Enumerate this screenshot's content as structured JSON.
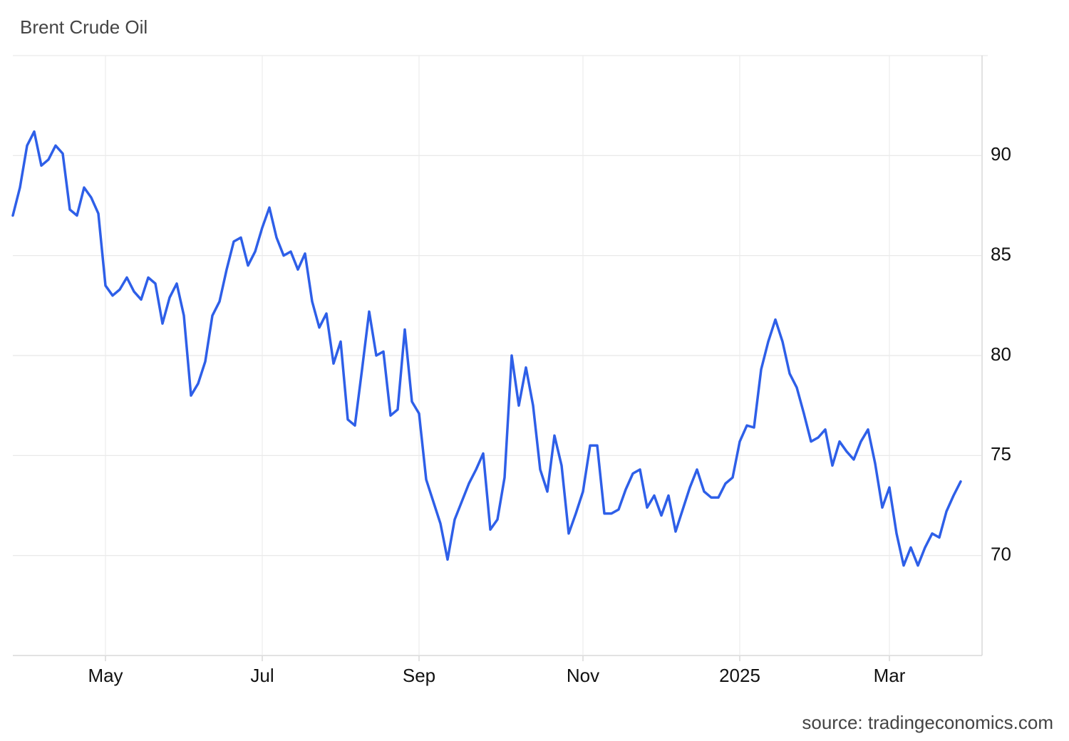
{
  "chart_data": {
    "type": "line",
    "title": "Brent Crude Oil",
    "source": "source: tradingeconomics.com",
    "color": "#2e5fe8",
    "grid": true,
    "categories": [
      null,
      null,
      null,
      null,
      null,
      null,
      null,
      null,
      null,
      null,
      null,
      null,
      null,
      "May",
      null,
      null,
      null,
      null,
      null,
      null,
      null,
      null,
      null,
      null,
      null,
      null,
      null,
      null,
      null,
      null,
      null,
      null,
      null,
      null,
      null,
      "Jul",
      null,
      null,
      null,
      null,
      null,
      null,
      null,
      null,
      null,
      null,
      null,
      null,
      null,
      null,
      null,
      null,
      null,
      null,
      null,
      null,
      null,
      "Sep",
      null,
      null,
      null,
      null,
      null,
      null,
      null,
      null,
      null,
      null,
      null,
      null,
      null,
      null,
      null,
      null,
      null,
      null,
      null,
      null,
      null,
      null,
      "Nov",
      null,
      null,
      null,
      null,
      null,
      null,
      null,
      null,
      null,
      null,
      null,
      null,
      null,
      null,
      null,
      null,
      null,
      null,
      null,
      null,
      null,
      "2025",
      null,
      null,
      null,
      null,
      null,
      null,
      null,
      null,
      null,
      null,
      null,
      null,
      null,
      null,
      null,
      null,
      null,
      null,
      null,
      null,
      "Mar",
      null,
      null,
      null,
      null,
      null,
      null,
      null,
      null,
      null,
      null
    ],
    "values": [
      87.0,
      88.4,
      90.5,
      91.2,
      89.5,
      89.8,
      90.5,
      90.1,
      87.3,
      87.0,
      88.4,
      87.9,
      87.1,
      83.5,
      83.0,
      83.3,
      83.9,
      83.2,
      82.8,
      83.9,
      83.6,
      81.6,
      82.9,
      83.6,
      82.0,
      78.0,
      78.6,
      79.7,
      82.0,
      82.7,
      84.3,
      85.7,
      85.9,
      84.5,
      85.2,
      86.4,
      87.4,
      85.9,
      85.0,
      85.2,
      84.3,
      85.1,
      82.7,
      81.4,
      82.1,
      79.6,
      80.7,
      76.8,
      76.5,
      79.3,
      82.2,
      80.0,
      80.2,
      77.0,
      77.3,
      81.3,
      77.7,
      77.1,
      73.8,
      72.7,
      71.6,
      69.8,
      71.8,
      72.7,
      73.6,
      74.3,
      75.1,
      71.3,
      71.8,
      73.9,
      80.0,
      77.5,
      79.4,
      77.5,
      74.3,
      73.2,
      76.0,
      74.5,
      71.1,
      72.1,
      73.2,
      75.5,
      75.5,
      72.1,
      72.1,
      72.3,
      73.3,
      74.1,
      74.3,
      72.4,
      73.0,
      72.0,
      73.0,
      71.2,
      72.3,
      73.4,
      74.3,
      73.2,
      72.9,
      72.9,
      73.6,
      73.9,
      75.7,
      76.5,
      76.4,
      79.3,
      80.7,
      81.8,
      80.7,
      79.1,
      78.4,
      77.1,
      75.7,
      75.9,
      76.3,
      74.5,
      75.7,
      75.2,
      74.8,
      75.7,
      76.3,
      74.6,
      72.4,
      73.4,
      71.1,
      69.5,
      70.4,
      69.5,
      70.4,
      71.1,
      70.9,
      72.2,
      73.0,
      73.7
    ],
    "ylim": [
      65,
      95
    ],
    "yticks": [
      70,
      75,
      80,
      85,
      90
    ]
  }
}
